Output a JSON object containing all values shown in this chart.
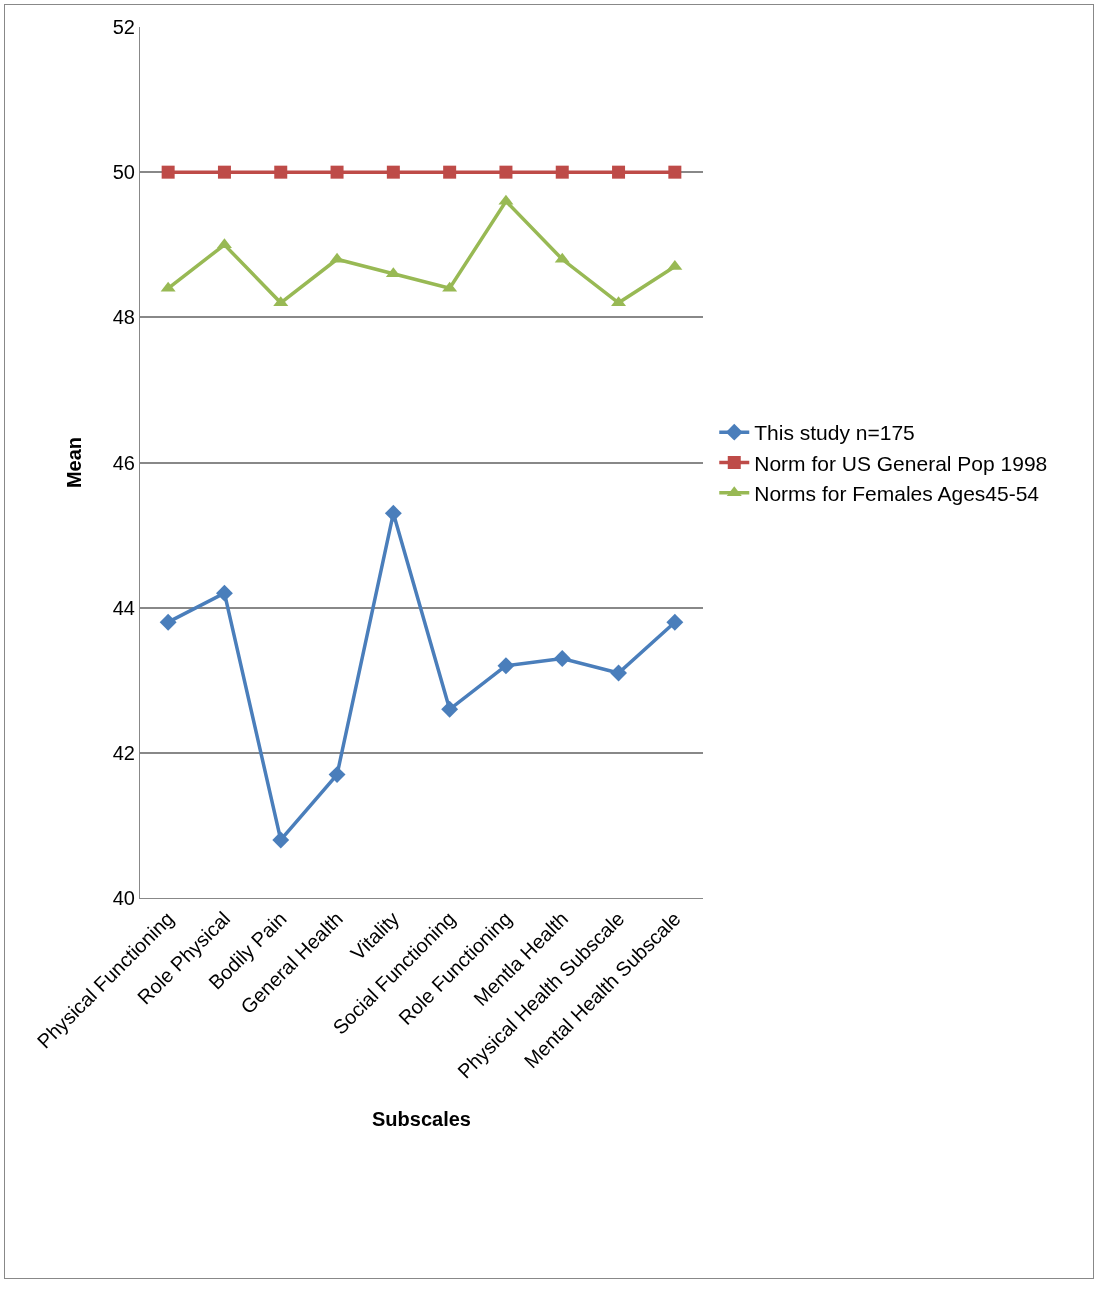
{
  "chart_data": {
    "type": "line",
    "xlabel": "Subscales",
    "ylabel": "Mean",
    "categories": [
      "Physical Functioning",
      "Role Physical",
      "Bodily Pain",
      "General Health",
      "Vitality",
      "Social Functioning",
      "Role Functioning",
      "Mentla Health",
      "Physical Health Subscale",
      "Mental Health Subscale"
    ],
    "series": [
      {
        "name": "This study n=175",
        "color": "#4a7ebb",
        "marker": "diamond",
        "values": [
          43.8,
          44.2,
          40.8,
          41.7,
          45.3,
          42.6,
          43.2,
          43.3,
          43.1,
          43.8
        ]
      },
      {
        "name": "Norm for US General Pop 1998",
        "color": "#be4b48",
        "marker": "square",
        "values": [
          50,
          50,
          50,
          50,
          50,
          50,
          50,
          50,
          50,
          50
        ]
      },
      {
        "name": "Norms for Females Ages45-54",
        "color": "#98b954",
        "marker": "triangle",
        "values": [
          48.4,
          49.0,
          48.2,
          48.8,
          48.6,
          48.4,
          49.6,
          48.8,
          48.2,
          48.7
        ]
      }
    ],
    "ylim": [
      40,
      52
    ],
    "yticks": [
      40,
      42,
      44,
      46,
      48,
      50,
      52
    ],
    "grid": "y",
    "legend": "right",
    "line_style": "solid"
  }
}
